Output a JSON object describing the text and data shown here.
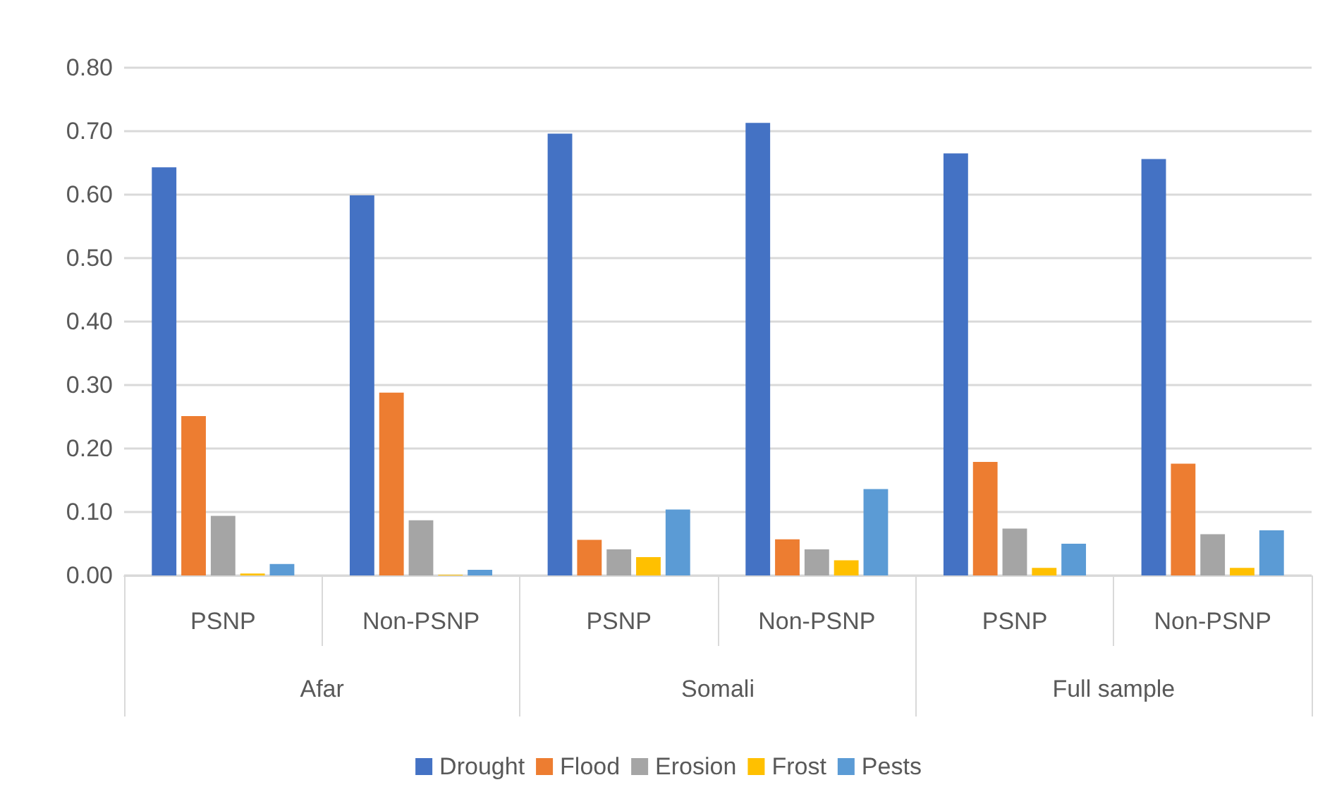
{
  "chart_data": {
    "type": "bar",
    "categories": [
      "PSNP",
      "Non-PSNP",
      "PSNP",
      "Non-PSNP",
      "PSNP",
      "Non-PSNP"
    ],
    "annotations": [
      "Afar",
      "Somali",
      "Full sample"
    ],
    "series": [
      {
        "name": "Drought",
        "color": "#4472c4",
        "values": [
          0.643,
          0.599,
          0.696,
          0.713,
          0.665,
          0.656
        ]
      },
      {
        "name": "Flood",
        "color": "#ed7d31",
        "values": [
          0.251,
          0.288,
          0.056,
          0.057,
          0.179,
          0.176
        ]
      },
      {
        "name": "Erosion",
        "color": "#a5a5a5",
        "values": [
          0.094,
          0.087,
          0.041,
          0.041,
          0.074,
          0.065
        ]
      },
      {
        "name": "Frost",
        "color": "#ffc000",
        "values": [
          0.003,
          0.001,
          0.029,
          0.024,
          0.012,
          0.012
        ]
      },
      {
        "name": "Pests",
        "color": "#5b9bd5",
        "values": [
          0.018,
          0.009,
          0.104,
          0.136,
          0.05,
          0.071
        ]
      }
    ],
    "ylim": [
      0,
      0.8
    ],
    "yticks": [
      {
        "value": 0,
        "label": "0.00"
      },
      {
        "value": 0.1,
        "label": "0.10"
      },
      {
        "value": 0.2,
        "label": "0.20"
      },
      {
        "value": 0.3,
        "label": "0.30"
      },
      {
        "value": 0.4,
        "label": "0.40"
      },
      {
        "value": 0.5,
        "label": "0.50"
      },
      {
        "value": 0.6,
        "label": "0.60"
      },
      {
        "value": 0.7,
        "label": "0.70"
      },
      {
        "value": 0.8,
        "label": "0.80"
      }
    ],
    "grid": "y",
    "legend": "bottom"
  }
}
